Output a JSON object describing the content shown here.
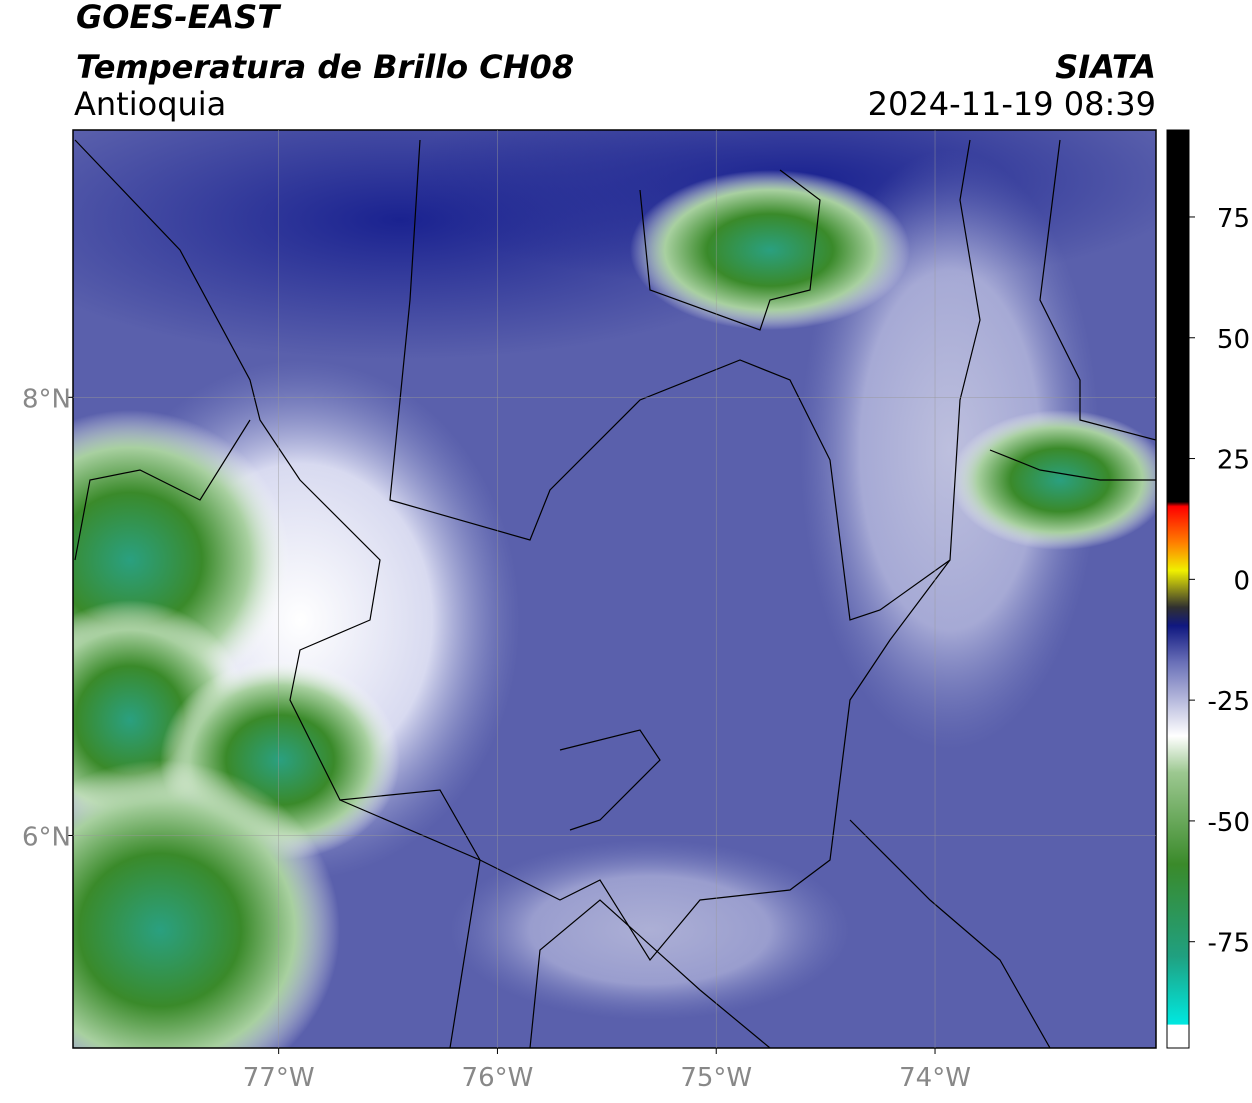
{
  "header": {
    "title": "GOES-EAST",
    "subtitle": "Temperatura de Brillo CH08",
    "region": "Antioquia",
    "source": "SIATA",
    "datetime": "2024-11-19 08:39"
  },
  "map": {
    "xlim": [
      -77.94,
      -72.99
    ],
    "ylim": [
      5.03,
      9.22
    ],
    "xticks": [
      {
        "value": -77,
        "label": "77°W"
      },
      {
        "value": -76,
        "label": "76°W"
      },
      {
        "value": -75,
        "label": "75°W"
      },
      {
        "value": -74,
        "label": "74°W"
      }
    ],
    "yticks": [
      {
        "value": 6,
        "label": "6°N"
      },
      {
        "value": 8,
        "label": "8°N"
      }
    ],
    "grid": true
  },
  "colorbar": {
    "lim": [
      -97,
      93
    ],
    "ticks": [
      75,
      50,
      25,
      0,
      -25,
      -50,
      -75
    ]
  }
}
